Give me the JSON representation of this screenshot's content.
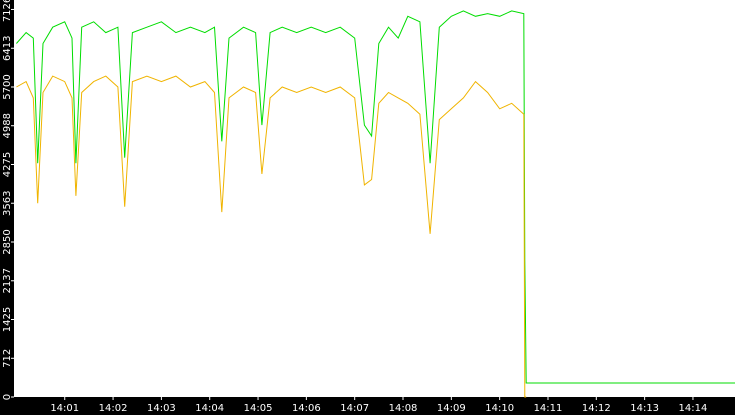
{
  "chart_data": {
    "type": "line",
    "x": [
      0,
      0.2,
      0.35,
      0.44,
      0.55,
      0.75,
      1.0,
      1.15,
      1.23,
      1.35,
      1.6,
      1.85,
      2.1,
      2.24,
      2.4,
      2.7,
      3.0,
      3.3,
      3.6,
      3.9,
      4.1,
      4.25,
      4.4,
      4.7,
      4.95,
      5.08,
      5.25,
      5.5,
      5.8,
      6.1,
      6.4,
      6.7,
      7.0,
      7.2,
      7.35,
      7.5,
      7.7,
      7.9,
      8.1,
      8.35,
      8.56,
      8.75,
      9.0,
      9.25,
      9.5,
      9.75,
      10.0,
      10.25,
      10.5,
      10.52,
      10.55,
      14.87
    ],
    "series": [
      {
        "color": "#00dd00",
        "values": [
          6500,
          6700,
          6600,
          4300,
          6500,
          6800,
          6900,
          6600,
          4300,
          6800,
          6900,
          6700,
          6800,
          4400,
          6700,
          6800,
          6900,
          6700,
          6800,
          6700,
          6800,
          4700,
          6600,
          6800,
          6700,
          5000,
          6700,
          6800,
          6700,
          6800,
          6700,
          6800,
          6600,
          5000,
          4800,
          6500,
          6800,
          6600,
          7000,
          6900,
          4300,
          6800,
          7000,
          7100,
          7000,
          7050,
          7000,
          7100,
          7050,
          2500,
          257,
          257
        ]
      },
      {
        "color": "#f0b400",
        "values": [
          5700,
          5800,
          5500,
          3563,
          5600,
          5900,
          5800,
          5500,
          3700,
          5600,
          5800,
          5900,
          5700,
          3500,
          5800,
          5900,
          5800,
          5900,
          5700,
          5800,
          5600,
          3400,
          5500,
          5700,
          5600,
          4100,
          5500,
          5700,
          5600,
          5700,
          5600,
          5700,
          5500,
          3900,
          4000,
          5400,
          5600,
          5500,
          5400,
          5200,
          3000,
          5100,
          5300,
          5500,
          5800,
          5600,
          5300,
          5400,
          5200,
          0,
          0,
          null
        ]
      }
    ],
    "xlim": [
      -0.05,
      14.87
    ],
    "xticks": [
      {
        "value": 1,
        "label": "14:01"
      },
      {
        "value": 2,
        "label": "14:02"
      },
      {
        "value": 3,
        "label": "14:03"
      },
      {
        "value": 4,
        "label": "14:04"
      },
      {
        "value": 5,
        "label": "14:05"
      },
      {
        "value": 6,
        "label": "14:06"
      },
      {
        "value": 7,
        "label": "14:07"
      },
      {
        "value": 8,
        "label": "14:08"
      },
      {
        "value": 9,
        "label": "14:09"
      },
      {
        "value": 10,
        "label": "14:10"
      },
      {
        "value": 11,
        "label": "14:11"
      },
      {
        "value": 12,
        "label": "14:12"
      },
      {
        "value": 13,
        "label": "14:13"
      },
      {
        "value": 14,
        "label": "14:14"
      }
    ],
    "ylim": [
      0,
      7300
    ],
    "yticks": [
      0,
      712,
      1425,
      2137,
      2850,
      3563,
      4275,
      4988,
      5700,
      6413,
      7126
    ]
  }
}
